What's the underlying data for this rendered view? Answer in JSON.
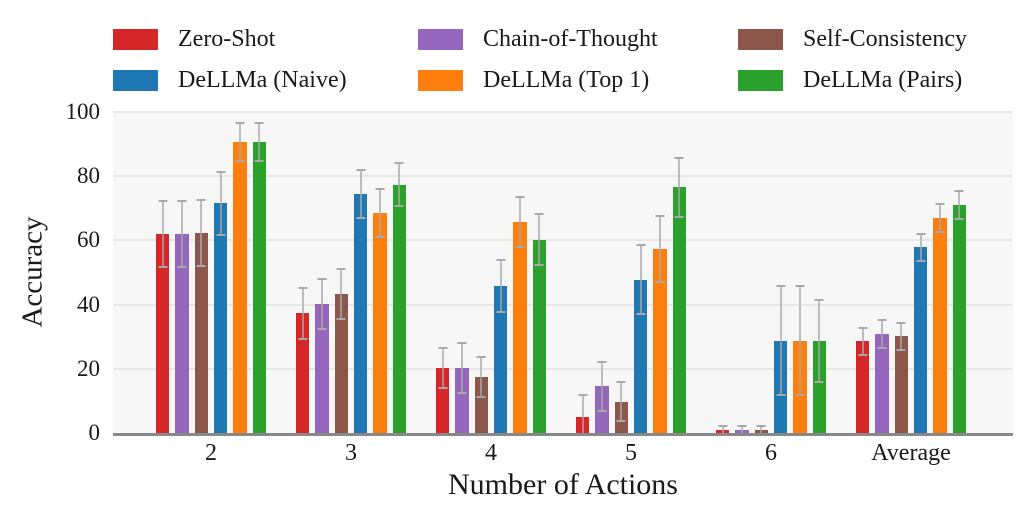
{
  "figure": {
    "background": "#ffffff",
    "plot_background": "#f7f7f7",
    "grid_color": "#e7e7e7",
    "spine_color": "#888888",
    "error_bar_color": "#a9a9a9",
    "text_color": "#1a1a1a"
  },
  "chart_data": {
    "type": "bar",
    "title": "",
    "xlabel": "Number of Actions",
    "ylabel": "Accuracy",
    "categories": [
      "2",
      "3",
      "4",
      "5",
      "6",
      "Average"
    ],
    "yticks": [
      0,
      20,
      40,
      60,
      80,
      100
    ],
    "ylim": [
      0,
      100
    ],
    "grid": true,
    "legend_position": "top",
    "legend_columns": 3,
    "series": [
      {
        "name": "Zero-Shot",
        "color": "#d62728",
        "values": [
          62,
          37.3,
          20.3,
          5,
          1,
          28.6
        ],
        "errors": [
          10.6,
          8.2,
          6.6,
          7,
          1.5,
          4.5
        ]
      },
      {
        "name": "Chain-of-Thought",
        "color": "#9467bd",
        "values": [
          62,
          40.2,
          20.3,
          14.6,
          1,
          30.9
        ],
        "errors": [
          10.6,
          8.1,
          8,
          7.9,
          1.5,
          4.7
        ]
      },
      {
        "name": "Self-Consistency",
        "color": "#8c564b",
        "values": [
          62.2,
          43.3,
          17.4,
          9.8,
          1,
          30.1
        ],
        "errors": [
          10.6,
          8.1,
          6.5,
          6.4,
          1.5,
          4.4
        ]
      },
      {
        "name": "DeLLMa (Naive)",
        "color": "#1f77b4",
        "values": [
          71.6,
          74.5,
          45.9,
          47.8,
          28.8,
          57.8
        ],
        "errors": [
          10.1,
          7.8,
          8.4,
          11,
          17.3,
          4.6
        ]
      },
      {
        "name": "DeLLMa (Top 1)",
        "color": "#ff7f0e",
        "values": [
          90.7,
          68.6,
          65.7,
          57.3,
          28.8,
          66.9
        ],
        "errors": [
          6.3,
          7.8,
          8,
          10.7,
          17.3,
          4.7
        ]
      },
      {
        "name": "DeLLMa (Pairs)",
        "color": "#2ca02c",
        "values": [
          90.7,
          77.4,
          60.2,
          76.5,
          28.8,
          71
        ],
        "errors": [
          6.3,
          7.1,
          8.3,
          9.4,
          13.1,
          4.6
        ]
      }
    ]
  }
}
